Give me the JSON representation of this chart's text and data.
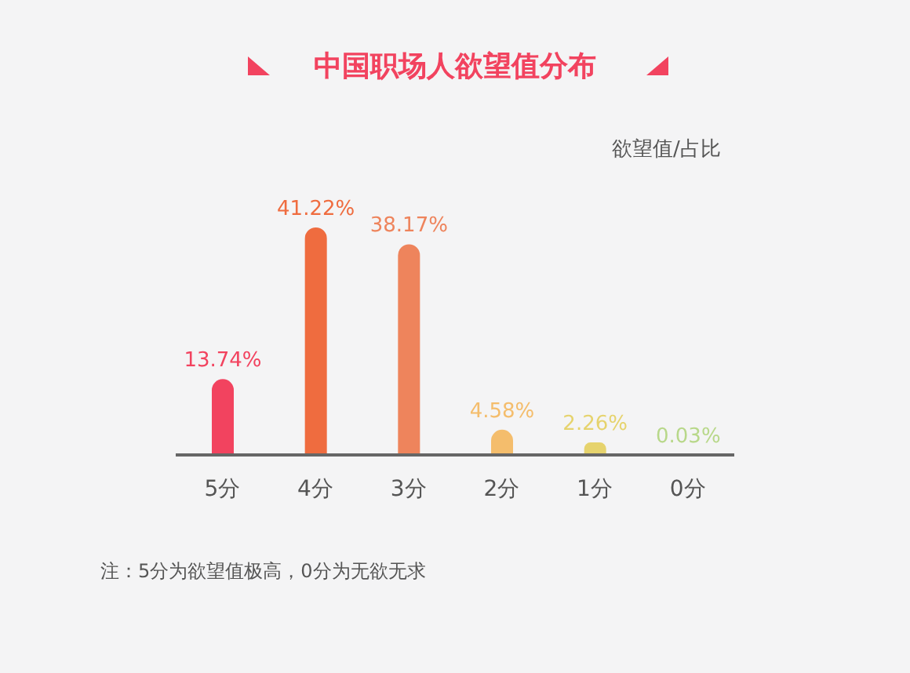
{
  "chart_data": {
    "type": "bar",
    "title": "中国职场人欲望值分布",
    "ylabel": "欲望值/占比",
    "categories": [
      "5分",
      "4分",
      "3分",
      "2分",
      "1分",
      "0分"
    ],
    "values": [
      13.74,
      41.22,
      38.17,
      4.58,
      2.26,
      0.03
    ],
    "colors": [
      "#f2435f",
      "#ef6c3f",
      "#ee845c",
      "#f4bd6c",
      "#e6d36d",
      "#b8d88a"
    ],
    "value_labels": [
      "13.74%",
      "41.22%",
      "38.17%",
      "4.58%",
      "2.26%",
      "0.03%"
    ],
    "annotations": [
      "注：5分为欲望值极高，0分为无欲无求"
    ],
    "grid": false,
    "legend": false
  }
}
